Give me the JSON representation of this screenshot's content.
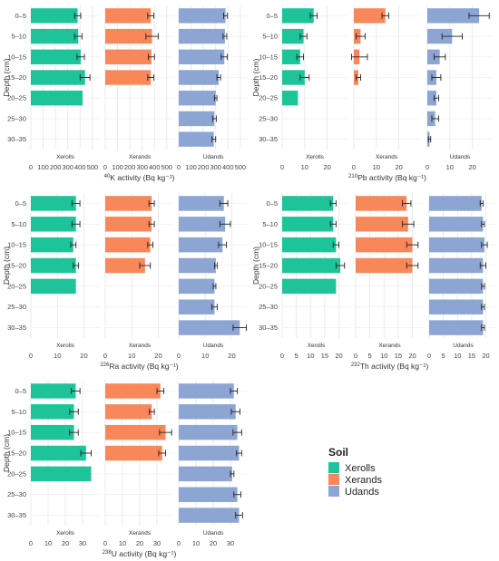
{
  "legend": {
    "title": "Soil",
    "items": [
      {
        "name": "Xerolls",
        "color": "#1FC39A"
      },
      {
        "name": "Xerands",
        "color": "#F8875A"
      },
      {
        "name": "Udands",
        "color": "#8DA5D2"
      }
    ]
  },
  "depth_axis_label": "Depth (cm)",
  "chart_data": [
    {
      "type": "bar",
      "orientation": "horizontal",
      "xlabel_sup": "40",
      "xlabel_main": "K activity (Bq kg⁻¹)",
      "categories": [
        "0–5",
        "5–10",
        "10–15",
        "15–20",
        "20–25",
        "25–30",
        "30–35"
      ],
      "facets": [
        {
          "name": "Xerolls",
          "color": "#1FC39A",
          "xlim": [
            0,
            560
          ],
          "ticks": [
            0,
            100,
            200,
            300,
            400,
            500
          ],
          "values": [
            380,
            385,
            405,
            440,
            420,
            null,
            null
          ],
          "errors": [
            25,
            30,
            30,
            40,
            0,
            null,
            null
          ]
        },
        {
          "name": "Xerands",
          "color": "#F8875A",
          "xlim": [
            0,
            560
          ],
          "ticks": [
            0,
            100,
            200,
            300,
            400,
            500
          ],
          "values": [
            370,
            380,
            375,
            370,
            null,
            null,
            null
          ],
          "errors": [
            25,
            50,
            25,
            25,
            null,
            null,
            null
          ]
        },
        {
          "name": "Udands",
          "color": "#8DA5D2",
          "xlim": [
            0,
            560
          ],
          "ticks": [
            0,
            100,
            200,
            300,
            400,
            500
          ],
          "values": [
            380,
            375,
            370,
            325,
            300,
            290,
            285
          ],
          "errors": [
            15,
            15,
            25,
            15,
            10,
            15,
            15
          ]
        }
      ]
    },
    {
      "type": "bar",
      "orientation": "horizontal",
      "xlabel_sup": "210",
      "xlabel_main": "Pb activity (Bq kg⁻¹)",
      "categories": [
        "0–5",
        "5–10",
        "10–15",
        "15–20",
        "20–25",
        "25–30",
        "30–35"
      ],
      "facets": [
        {
          "name": "Xerolls",
          "color": "#1FC39A",
          "xlim": [
            0,
            29
          ],
          "ticks": [
            0,
            10,
            20
          ],
          "values": [
            14,
            9.5,
            8,
            10,
            7,
            null,
            null
          ],
          "errors": [
            1.5,
            1.5,
            1.5,
            2,
            0,
            null,
            null
          ]
        },
        {
          "name": "Xerands",
          "color": "#F8875A",
          "xlim": [
            0,
            29
          ],
          "ticks": [
            0,
            10,
            20
          ],
          "values": [
            14,
            3,
            2.5,
            2,
            null,
            null,
            null
          ],
          "errors": [
            1.5,
            2,
            3.5,
            1,
            null,
            null,
            null
          ]
        },
        {
          "name": "Udands",
          "color": "#8DA5D2",
          "xlim": [
            0,
            29
          ],
          "ticks": [
            0,
            10,
            20
          ],
          "values": [
            23,
            11,
            5.5,
            4,
            4,
            3.5,
            1
          ],
          "errors": [
            4.5,
            4.5,
            2.5,
            2,
            1,
            1.5,
            0.5
          ]
        }
      ]
    },
    {
      "type": "bar",
      "orientation": "horizontal",
      "xlabel_sup": "226",
      "xlabel_main": "Ra activity (Bq kg⁻¹)",
      "categories": [
        "0–5",
        "5–10",
        "10–15",
        "15–20",
        "20–25",
        "25–30",
        "30–35"
      ],
      "facets": [
        {
          "name": "Xerolls",
          "color": "#1FC39A",
          "xlim": [
            0,
            26
          ],
          "ticks": [
            0,
            10,
            20
          ],
          "values": [
            17,
            17,
            16,
            17,
            17,
            null,
            null
          ],
          "errors": [
            1.5,
            1.5,
            1,
            1,
            0,
            null,
            null
          ]
        },
        {
          "name": "Xerands",
          "color": "#F8875A",
          "xlim": [
            0,
            26
          ],
          "ticks": [
            0,
            10,
            20
          ],
          "values": [
            17.5,
            17.5,
            17,
            15,
            null,
            null,
            null
          ],
          "errors": [
            1,
            1,
            1,
            2,
            null,
            null,
            null
          ]
        },
        {
          "name": "Udands",
          "color": "#8DA5D2",
          "xlim": [
            0,
            26
          ],
          "ticks": [
            0,
            10,
            20
          ],
          "values": [
            17,
            17.5,
            16.5,
            14,
            13.5,
            13.5,
            23
          ],
          "errors": [
            1.5,
            2,
            1.5,
            0.5,
            0.5,
            1,
            2.5
          ]
        }
      ]
    },
    {
      "type": "bar",
      "orientation": "horizontal",
      "xlabel_sup": "232",
      "xlabel_main": "Th activity (Bq kg⁻¹)",
      "categories": [
        "0–5",
        "5–10",
        "10–15",
        "15–20",
        "20–25",
        "25–30",
        "30–35"
      ],
      "facets": [
        {
          "name": "Xerolls",
          "color": "#1FC39A",
          "xlim": [
            0,
            24
          ],
          "ticks": [
            0,
            5,
            10,
            15,
            20
          ],
          "values": [
            18,
            18,
            19,
            20.5,
            19,
            null,
            null
          ],
          "errors": [
            1,
            1,
            1,
            1.5,
            0,
            null,
            null
          ]
        },
        {
          "name": "Xerands",
          "color": "#F8875A",
          "xlim": [
            0,
            24
          ],
          "ticks": [
            0,
            5,
            10,
            15,
            20
          ],
          "values": [
            18,
            18.5,
            20,
            20,
            null,
            null,
            null
          ],
          "errors": [
            1.5,
            2,
            2,
            2,
            null,
            null,
            null
          ]
        },
        {
          "name": "Udands",
          "color": "#8DA5D2",
          "xlim": [
            0,
            24
          ],
          "ticks": [
            0,
            5,
            10,
            15,
            20
          ],
          "values": [
            18.5,
            19,
            19.5,
            19,
            19,
            19,
            19
          ],
          "errors": [
            0.5,
            0.5,
            1,
            1,
            0.5,
            0.5,
            0.5
          ]
        }
      ]
    },
    {
      "type": "bar",
      "orientation": "horizontal",
      "xlabel_sup": "238",
      "xlabel_main": "U activity (Bq kg⁻¹)",
      "categories": [
        "0–5",
        "5–10",
        "10–15",
        "15–20",
        "20–25",
        "25–30",
        "30–35"
      ],
      "facets": [
        {
          "name": "Xerolls",
          "color": "#1FC39A",
          "xlim": [
            0,
            40
          ],
          "ticks": [
            0,
            10,
            20,
            30
          ],
          "values": [
            26,
            25,
            25,
            32,
            35,
            null,
            null
          ],
          "errors": [
            2.5,
            2.5,
            2.5,
            3,
            0,
            null,
            null
          ]
        },
        {
          "name": "Xerands",
          "color": "#F8875A",
          "xlim": [
            0,
            40
          ],
          "ticks": [
            0,
            10,
            20,
            30
          ],
          "values": [
            32,
            27,
            35,
            33,
            null,
            null,
            null
          ],
          "errors": [
            2,
            1.5,
            3.5,
            2,
            null,
            null,
            null
          ]
        },
        {
          "name": "Udands",
          "color": "#8DA5D2",
          "xlim": [
            0,
            40
          ],
          "ticks": [
            0,
            10,
            20,
            30
          ],
          "values": [
            32,
            33,
            34,
            35,
            31,
            34,
            35
          ],
          "errors": [
            2,
            2.5,
            2.5,
            1.5,
            1,
            2,
            2
          ]
        }
      ]
    }
  ]
}
